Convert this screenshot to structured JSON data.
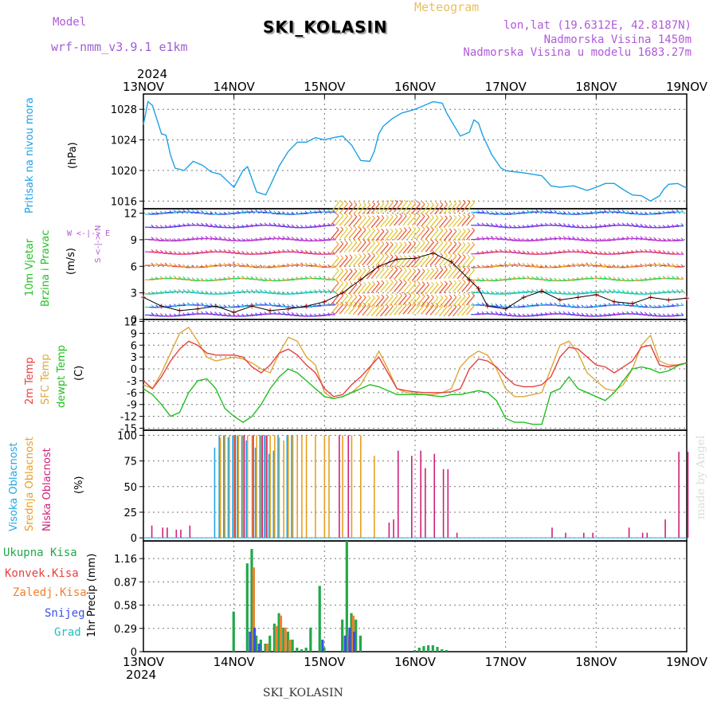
{
  "header": {
    "model_label": "Model",
    "model_name": "wrf-nmm_v3.9.1 e1km",
    "title": "SKI_KOLASIN",
    "product": "Meteogram",
    "lonlat": "lon,lat (19.6312E, 42.8187N)",
    "elevation": "Nadmorska Visina 1450m",
    "model_elevation": "Nadmorska Visina u modelu 1683.27m"
  },
  "year_top": "2024",
  "year_bottom": "2024",
  "dates": [
    "13NOV",
    "14NOV",
    "15NOV",
    "16NOV",
    "17NOV",
    "18NOV",
    "19NOV"
  ],
  "watermark": "made by Angel",
  "footer_station": "SKI_KOLASIN",
  "colors": {
    "pressure": "#1ea0e6",
    "t2m": "#e84040",
    "sfc": "#dca83c",
    "dewpt": "#22c022",
    "high_cloud": "#20a8e0",
    "mid_cloud": "#e8a020",
    "low_cloud": "#d0207a",
    "total_precip": "#22a84a",
    "conv_precip": "#e83c3c",
    "frozen": "#f08030",
    "snow": "#3c50e0",
    "grad": "#22c0c0"
  },
  "panels": {
    "pressure": {
      "label1": "Pritisak na nivou mora",
      "unit": "(hPa)",
      "ticks": [
        "1028",
        "1024",
        "1020",
        "1016"
      ]
    },
    "wind": {
      "label1": "10m Vjetar",
      "label2": "Brzina i Pravac",
      "unit": "(m/s)",
      "ticks": [
        "12",
        "9",
        "6",
        "3",
        "0"
      ],
      "compass": "W <-|-> E",
      "compass2": "S <-|-> N"
    },
    "temp": {
      "label1": "2m Temp",
      "label2": "SFC Temp",
      "label3": "dewpt Temp",
      "unit": "(C)",
      "ticks": [
        "12",
        "9",
        "6",
        "3",
        "0",
        "-3",
        "-6",
        "-9",
        "-12",
        "-15"
      ]
    },
    "cloud": {
      "label1": "Visoka Oblacnost",
      "label2": "Srednja Oblacnost",
      "label3": "Niska Oblacnost",
      "unit": "(%)",
      "ticks": [
        "100",
        "75",
        "50",
        "25",
        "0"
      ]
    },
    "precip": {
      "legend": [
        "Ukupna Kisa",
        "Konvek.Kisa",
        "Zaledj.Kisa",
        "Snijeg",
        "Grad"
      ],
      "label": "1hr Precip (mm)",
      "ticks": [
        "1.16",
        "0.87",
        "0.58",
        "0.29",
        "0"
      ]
    }
  },
  "chart_data": [
    {
      "type": "line",
      "title": "Pritisak na nivou mora",
      "ylabel": "(hPa)",
      "ylim": [
        1015,
        1030
      ],
      "x_days": [
        0,
        0.05,
        0.1,
        0.2,
        0.25,
        0.3,
        0.35,
        0.45,
        0.55,
        0.65,
        0.75,
        0.85,
        1.0,
        1.1,
        1.15,
        1.25,
        1.35,
        1.4,
        1.45,
        1.5,
        1.6,
        1.7,
        1.8,
        1.9,
        2.0,
        2.1,
        2.2,
        2.3,
        2.4,
        2.5,
        2.55,
        2.6,
        2.65,
        2.75,
        2.85,
        3.0,
        3.1,
        3.2,
        3.3,
        3.35,
        3.5,
        3.6,
        3.65,
        3.7,
        3.75,
        3.85,
        3.95,
        4.0,
        4.05,
        4.2,
        4.3,
        4.4,
        4.5,
        4.6,
        4.75,
        4.9,
        5.0,
        5.1,
        5.2,
        5.3,
        5.4,
        5.5,
        5.6,
        5.7,
        5.75,
        5.8,
        5.9,
        6.0
      ],
      "series": [
        {
          "values": [
            1026,
            1029,
            1028.5,
            1024.8,
            1024.6,
            1022,
            1020.3,
            1020,
            1021.2,
            1020.7,
            1019.8,
            1019.5,
            1017.8,
            1020,
            1020.5,
            1017.2,
            1016.8,
            1018,
            1019.3,
            1020.6,
            1022.5,
            1023.7,
            1023.7,
            1024.3,
            1024,
            1024.3,
            1024.5,
            1023.3,
            1021.3,
            1021.2,
            1022.5,
            1024.8,
            1025.8,
            1026.8,
            1027.5,
            1028,
            1028.5,
            1029,
            1028.8,
            1027.5,
            1024.5,
            1025,
            1026.6,
            1026.2,
            1024.5,
            1022,
            1020.3,
            1020,
            1019.9,
            1019.7,
            1019.5,
            1019.3,
            1018,
            1017.8,
            1018,
            1017.4,
            1017.8,
            1018.3,
            1018.3,
            1017.5,
            1016.8,
            1016.7,
            1016,
            1016.7,
            1017.6,
            1018.2,
            1018.3,
            1017.7
          ]
        }
      ]
    },
    {
      "type": "line",
      "title": "10m Vjetar",
      "ylabel": "(m/s)",
      "ylim": [
        0,
        12.5
      ],
      "x_days": [
        0,
        0.2,
        0.4,
        0.6,
        0.8,
        1.0,
        1.2,
        1.4,
        1.6,
        1.8,
        2.0,
        2.2,
        2.4,
        2.6,
        2.8,
        3.0,
        3.2,
        3.4,
        3.6,
        3.7,
        3.8,
        4.0,
        4.2,
        4.4,
        4.6,
        4.8,
        5.0,
        5.2,
        5.4,
        5.6,
        5.8,
        6.0
      ],
      "series": [
        {
          "values": [
            2.5,
            1.5,
            1,
            1.2,
            1.5,
            0.8,
            1.5,
            1,
            1.2,
            1.5,
            2,
            3,
            4.5,
            6,
            6.8,
            6.9,
            7.5,
            6.5,
            4.5,
            3.5,
            1.5,
            1.2,
            2.5,
            3.2,
            2.2,
            2.5,
            2.8,
            2,
            1.8,
            2.5,
            2.2,
            2.4
          ]
        }
      ]
    },
    {
      "type": "line",
      "title": "2m Temp / SFC Temp / dewpt Temp",
      "ylabel": "(C)",
      "ylim": [
        -15.5,
        12.5
      ],
      "x_days": [
        0,
        0.1,
        0.2,
        0.3,
        0.4,
        0.5,
        0.6,
        0.7,
        0.8,
        0.9,
        1.0,
        1.1,
        1.2,
        1.3,
        1.4,
        1.5,
        1.6,
        1.7,
        1.8,
        1.9,
        2.0,
        2.1,
        2.2,
        2.3,
        2.4,
        2.5,
        2.6,
        2.7,
        2.8,
        2.9,
        3.0,
        3.1,
        3.2,
        3.3,
        3.4,
        3.5,
        3.6,
        3.7,
        3.8,
        3.9,
        4.0,
        4.1,
        4.2,
        4.3,
        4.4,
        4.5,
        4.6,
        4.7,
        4.8,
        4.9,
        5.0,
        5.1,
        5.2,
        5.3,
        5.4,
        5.5,
        5.6,
        5.7,
        5.8,
        5.9,
        6.0
      ],
      "series": [
        {
          "name": "2m Temp",
          "values": [
            -3,
            -5,
            -2,
            2,
            5,
            7,
            6,
            4,
            3.5,
            3.5,
            3.5,
            3,
            0.5,
            -1,
            1,
            4,
            5,
            3.5,
            1,
            -1,
            -5,
            -7,
            -6.5,
            -4,
            -2,
            0.5,
            3,
            -1,
            -5,
            -5.5,
            -5.8,
            -6,
            -6,
            -6,
            -5.8,
            -5,
            0,
            2.5,
            2,
            0.5,
            -2,
            -4,
            -4.5,
            -4.5,
            -4,
            -2,
            3,
            5.5,
            5,
            3,
            1,
            0.5,
            -1,
            0.5,
            2,
            5.5,
            6,
            1,
            0.5,
            1,
            1.5
          ]
        },
        {
          "name": "SFC Temp",
          "values": [
            -4,
            -5,
            -1,
            4,
            9,
            10.5,
            7,
            3,
            2,
            2.5,
            3,
            2.5,
            1.5,
            0,
            -1,
            4,
            8,
            7,
            3,
            1,
            -6,
            -7.5,
            -7,
            -6,
            -4,
            0,
            4.5,
            0,
            -5,
            -6,
            -6.2,
            -6.5,
            -6.5,
            -6,
            -5,
            0.5,
            3,
            4.5,
            3.5,
            0,
            -5,
            -7,
            -7,
            -6.5,
            -6,
            0,
            6,
            7,
            4,
            -1,
            -3,
            -5,
            -5.5,
            -4,
            0,
            6,
            8.5,
            2,
            1,
            1,
            1.5
          ]
        },
        {
          "name": "dewpt Temp",
          "values": [
            -5,
            -6.5,
            -9,
            -12,
            -11,
            -6,
            -3,
            -2.5,
            -5,
            -10,
            -12,
            -13.5,
            -12,
            -9,
            -5,
            -2,
            0,
            -1,
            -3,
            -5,
            -7,
            -7.5,
            -7,
            -6,
            -5,
            -4,
            -4.5,
            -5.5,
            -6.5,
            -6.5,
            -6.5,
            -6.5,
            -6.8,
            -7,
            -6.5,
            -6.5,
            -6,
            -5.5,
            -6,
            -8,
            -12.5,
            -13.5,
            -13.5,
            -14,
            -14,
            -6,
            -5,
            -2,
            -5,
            -6,
            -7,
            -8,
            -6,
            -3,
            0,
            0.5,
            0,
            -1,
            -0.5,
            0.8,
            1.5
          ]
        }
      ]
    },
    {
      "type": "bar",
      "title": "Visoka / Srednja / Niska Oblacnost",
      "ylabel": "(%)",
      "ylim": [
        0,
        105
      ],
      "series": [
        {
          "name": "Visoka Oblacnost",
          "x_days": [
            0.8,
            0.85,
            0.9,
            0.95,
            1.0,
            1.05,
            1.1,
            1.15,
            1.25,
            1.3,
            1.35,
            1.4,
            1.45,
            1.5,
            1.6,
            1.65
          ],
          "values": [
            88,
            100,
            100,
            98,
            100,
            100,
            100,
            95,
            88,
            100,
            100,
            82,
            85,
            100,
            100,
            100
          ]
        },
        {
          "name": "Srednja Oblacnost",
          "x_days": [
            0.85,
            0.9,
            0.95,
            1.0,
            1.05,
            1.1,
            1.15,
            1.2,
            1.25,
            1.3,
            1.35,
            1.4,
            1.45,
            1.5,
            1.55,
            1.6,
            1.65,
            1.7,
            1.75,
            1.8,
            1.9,
            2.0,
            2.05,
            2.2,
            2.3,
            2.4,
            2.55
          ],
          "values": [
            98,
            100,
            100,
            100,
            100,
            100,
            100,
            100,
            100,
            100,
            100,
            100,
            100,
            98,
            95,
            100,
            100,
            100,
            100,
            100,
            100,
            100,
            100,
            100,
            100,
            100,
            80
          ]
        },
        {
          "name": "Niska Oblacnost",
          "x_days": [
            0.08,
            0.2,
            0.25,
            0.35,
            0.4,
            0.5,
            1.0,
            1.1,
            1.2,
            1.3,
            1.35,
            2.15,
            2.25,
            2.7,
            2.75,
            2.8,
            2.95,
            3.05,
            3.1,
            3.2,
            3.3,
            3.35,
            3.45,
            4.5,
            4.65,
            4.85,
            4.95,
            5.35,
            5.5,
            5.55,
            5.75,
            5.9,
            6.0
          ],
          "values": [
            12,
            10,
            10,
            8,
            8,
            12,
            100,
            100,
            100,
            100,
            100,
            100,
            100,
            15,
            18,
            85,
            80,
            85,
            68,
            82,
            67,
            67,
            5,
            10,
            5,
            5,
            5,
            10,
            5,
            5,
            18,
            84,
            84
          ]
        }
      ]
    },
    {
      "type": "bar",
      "title": "1hr Precip (mm)",
      "ylabel": "1hr Precip (mm)",
      "ylim": [
        0,
        1.38
      ],
      "series": [
        {
          "name": "Ukupna Kisa",
          "x_days": [
            1.0,
            1.15,
            1.2,
            1.25,
            1.3,
            1.35,
            1.4,
            1.45,
            1.5,
            1.55,
            1.6,
            1.65,
            1.7,
            1.75,
            1.8,
            1.85,
            1.95,
            2.0,
            2.2,
            2.25,
            2.3,
            2.35,
            2.4,
            3.0,
            3.05,
            3.1,
            3.15,
            3.2,
            3.25,
            3.3,
            3.35
          ],
          "values": [
            0.5,
            1.1,
            1.28,
            0.2,
            0.15,
            0.1,
            0.2,
            0.35,
            0.48,
            0.3,
            0.25,
            0.15,
            0.05,
            0.03,
            0.05,
            0.3,
            0.82,
            0.05,
            0.4,
            1.38,
            0.48,
            0.4,
            0.2,
            0.02,
            0.05,
            0.07,
            0.08,
            0.08,
            0.06,
            0.03,
            0.02
          ]
        },
        {
          "name": "Konvek.Kisa",
          "x_days": [],
          "values": []
        },
        {
          "name": "Zaledj.Kisa",
          "x_days": [
            1.2,
            1.35,
            1.45,
            1.5,
            1.55,
            1.6,
            2.25,
            2.3
          ],
          "values": [
            1.05,
            0.1,
            0.32,
            0.45,
            0.3,
            0.15,
            0.2,
            0.45
          ]
        },
        {
          "name": "Snijeg",
          "x_days": [
            1.15,
            1.2,
            1.25,
            1.95,
            2.2,
            2.25,
            2.3
          ],
          "values": [
            0.25,
            0.3,
            0.1,
            0.15,
            0.2,
            0.3,
            0.25
          ]
        },
        {
          "name": "Grad",
          "x_days": [],
          "values": []
        }
      ]
    }
  ]
}
